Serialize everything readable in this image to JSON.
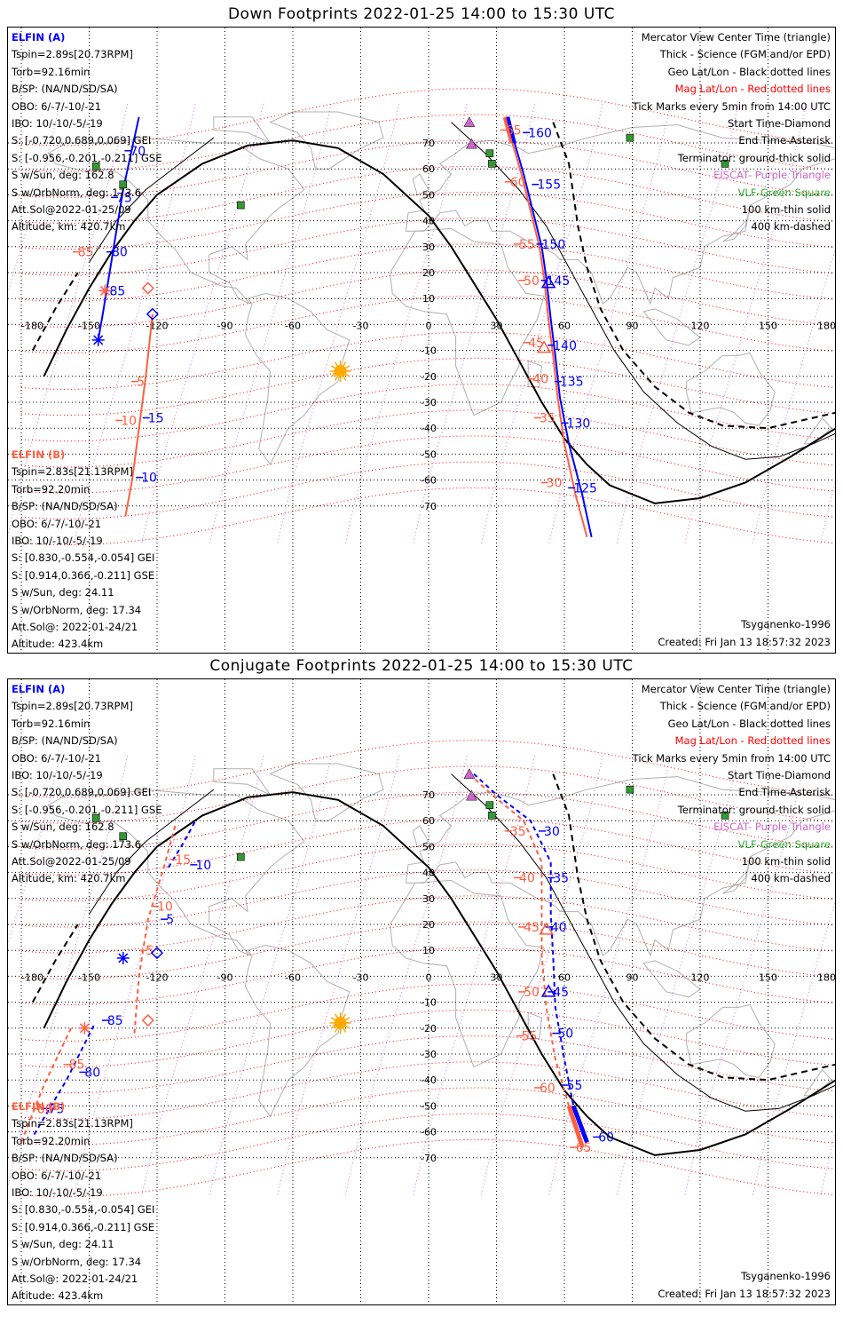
{
  "panels": [
    {
      "title": "Down Footprints 2022-01-25 14:00 to 15:30 UTC",
      "kind": "down",
      "elfin_a": {
        "header": "ELFIN (A)",
        "lines": [
          "Tspin=2.89s[20.73RPM]",
          "Torb=92.16min",
          "B/SP: (NA/ND/SD/SA)",
          "OBO: 6/-7/-10/-21",
          "IBO: 10/-10/-5/-19",
          "S: [-0.720,0.689,0.069] GEI",
          "S: [-0.956,-0.201,-0.211] GSE",
          "S w/Sun, deg: 162.8",
          "S w/OrbNorm, deg: 173.6",
          "Att.Sol@2022-01-25/09",
          "Altitude, km: 420.7km"
        ]
      },
      "elfin_b": {
        "header": "ELFIN (B)",
        "lines": [
          "Tspin=2.83s[21.13RPM]",
          "Torb=92.20min",
          "B/SP: (NA/ND/SD/SA)",
          "OBO: 6/-7/-10/-21",
          "IBO: 10/-10/-5/-19",
          "S: [0.830,-0.554,-0.054] GEI",
          "S: [0.914,0.366,-0.211] GSE",
          "S w/Sun, deg: 24.11",
          "S w/OrbNorm, deg: 17.34",
          "Att.Sol@: 2022-01-24/21",
          "Altitude: 423.4km"
        ]
      },
      "model": "Tsyganenko-1996",
      "created": "Created: Fri Jan 13 18:57:32 2023"
    },
    {
      "title": "Conjugate Footprints 2022-01-25 14:00 to 15:30 UTC",
      "kind": "conj",
      "elfin_a": {
        "header": "ELFIN (A)",
        "lines": [
          "Tspin=2.89s[20.73RPM]",
          "Torb=92.16min",
          "B/SP: (NA/ND/SD/SA)",
          "OBO: 6/-7/-10/-21",
          "IBO: 10/-10/-5/-19",
          "S: [-0.720,0.689,0.069] GEI",
          "S: [-0.956,-0.201,-0.211] GSE",
          "S w/Sun, deg: 162.8",
          "S w/OrbNorm, deg: 173.6",
          "Att.Sol@2022-01-25/09",
          "Altitude, km: 420.7km"
        ]
      },
      "elfin_b": {
        "header": "ELFIN (B)",
        "lines": [
          "Tspin=2.83s[21.13RPM]",
          "Torb=92.20min",
          "B/SP: (NA/ND/SD/SA)",
          "OBO: 6/-7/-10/-21",
          "IBO: 10/-10/-5/-19",
          "S: [0.830,-0.554,-0.054] GEI",
          "S: [0.914,0.366,-0.211] GSE",
          "S w/Sun, deg: 24.11",
          "S w/OrbNorm, deg: 17.34",
          "Att.Sol@: 2022-01-24/21",
          "Altitude: 423.4km"
        ]
      },
      "model": "Tsyganenko-1996",
      "created": "Created: Fri Jan 13 18:57:32 2023"
    }
  ],
  "legend": [
    {
      "text": "Mercator View Center Time (triangle)",
      "color": "#000000"
    },
    {
      "text": "Thick - Science (FGM and/or EPD)",
      "color": "#000000"
    },
    {
      "text": "Geo Lat/Lon - Black dotted lines",
      "color": "#000000"
    },
    {
      "text": "Mag Lat/Lon - Red dotted lines",
      "color": "#ff0000"
    },
    {
      "text": "Tick Marks every 5min from 14:00 UTC",
      "color": "#000000"
    },
    {
      "text": "Start Time-Diamond",
      "color": "#000000"
    },
    {
      "text": "End Time-Asterisk",
      "color": "#000000"
    },
    {
      "text": "Terminator: ground-thick solid",
      "color": "#000000"
    },
    {
      "text": "EISCAT- Purple Triangle",
      "color": "#cc66cc"
    },
    {
      "text": "VLF-Green Square",
      "color": "#33aa33"
    },
    {
      "text": "100 km-thin solid",
      "color": "#000000"
    },
    {
      "text": "400 km-dashed",
      "color": "#000000"
    }
  ],
  "lon_labels": [
    "-180",
    "-150",
    "-120",
    "-90",
    "-60",
    "-30",
    "0",
    "30",
    "60",
    "90",
    "120",
    "150",
    "180"
  ],
  "lat_labels": [
    "70",
    "60",
    "50",
    "40",
    "30",
    "20",
    "10",
    "0",
    "-10",
    "-20",
    "-30",
    "-40",
    "-50",
    "-60",
    "-70"
  ],
  "colors": {
    "elfin_a": "#0000ff",
    "elfin_b": "#ff6040",
    "mag_grid": "#ff0000",
    "geo_grid": "#000000",
    "eiscat": "#cc66cc",
    "vlf": "#339933",
    "sun": "#ffaa00"
  },
  "markers": {
    "eiscat": [
      {
        "lon": 18,
        "lat": 78
      },
      {
        "lon": 19,
        "lat": 69.6
      }
    ],
    "vlf": [
      {
        "lon": 27,
        "lat": 66
      },
      {
        "lon": 28,
        "lat": 62
      },
      {
        "lon": -147,
        "lat": 61
      },
      {
        "lon": -135,
        "lat": 54
      },
      {
        "lon": -83,
        "lat": 46
      },
      {
        "lon": 89,
        "lat": 72
      },
      {
        "lon": 131,
        "lat": 62
      }
    ],
    "sun": {
      "lon": -39,
      "lat": -18
    }
  },
  "track_labels": {
    "down": {
      "a": [
        {
          "t": "70",
          "lon": -132,
          "lat": 67
        },
        {
          "t": "75",
          "lon": -138,
          "lat": 49
        },
        {
          "t": "80",
          "lon": -140,
          "lat": 28
        },
        {
          "t": "85",
          "lon": -141,
          "lat": 13
        },
        {
          "t": "140",
          "lon": 55,
          "lat": -8
        },
        {
          "t": "135",
          "lon": 58,
          "lat": -22
        },
        {
          "t": "130",
          "lon": 61,
          "lat": -38
        },
        {
          "t": "125",
          "lon": 64,
          "lat": -63
        },
        {
          "t": "145",
          "lon": 52,
          "lat": 17
        },
        {
          "t": "150",
          "lon": 50,
          "lat": 31
        },
        {
          "t": "155",
          "lon": 48,
          "lat": 54
        },
        {
          "t": "160",
          "lon": 44,
          "lat": 74
        },
        {
          "t": "15",
          "lon": -124,
          "lat": -36
        },
        {
          "t": "10",
          "lon": -127,
          "lat": -59
        }
      ],
      "b": [
        {
          "t": "65",
          "lon": 34,
          "lat": 75
        },
        {
          "t": "60",
          "lon": 36,
          "lat": 55
        },
        {
          "t": "55",
          "lon": 40,
          "lat": 31
        },
        {
          "t": "50",
          "lon": 42,
          "lat": 17
        },
        {
          "t": "45",
          "lon": 44,
          "lat": -7
        },
        {
          "t": "40",
          "lon": 46,
          "lat": -21
        },
        {
          "t": "35",
          "lon": 49,
          "lat": -36
        },
        {
          "t": "30",
          "lon": 52,
          "lat": -61
        },
        {
          "t": "85",
          "lon": -155,
          "lat": 28
        },
        {
          "t": "10",
          "lon": -136,
          "lat": -37
        },
        {
          "t": "5",
          "lon": -129,
          "lat": -22
        }
      ]
    },
    "conj": {
      "a": [
        {
          "t": "30",
          "lon": 51,
          "lat": 56
        },
        {
          "t": "35",
          "lon": 55,
          "lat": 38
        },
        {
          "t": "40",
          "lon": 54,
          "lat": 19
        },
        {
          "t": "45",
          "lon": 55,
          "lat": -6
        },
        {
          "t": "50",
          "lon": 57,
          "lat": -22
        },
        {
          "t": "55",
          "lon": 61,
          "lat": -42
        },
        {
          "t": "60",
          "lon": 75,
          "lat": -62
        },
        {
          "t": "5",
          "lon": -116,
          "lat": 22
        },
        {
          "t": "10",
          "lon": -103,
          "lat": 43
        },
        {
          "t": "85",
          "lon": -142,
          "lat": -17
        },
        {
          "t": "80",
          "lon": -152,
          "lat": -37
        },
        {
          "t": "75",
          "lon": -168,
          "lat": -51
        }
      ],
      "b": [
        {
          "t": "35",
          "lon": 36,
          "lat": 56
        },
        {
          "t": "40",
          "lon": 40,
          "lat": 38
        },
        {
          "t": "45",
          "lon": 42,
          "lat": 19
        },
        {
          "t": "50",
          "lon": 42,
          "lat": -6
        },
        {
          "t": "55",
          "lon": 41,
          "lat": -23
        },
        {
          "t": "60",
          "lon": 49,
          "lat": -43
        },
        {
          "t": "65",
          "lon": 65,
          "lat": -66
        },
        {
          "t": "5",
          "lon": -125,
          "lat": 10
        },
        {
          "t": "10",
          "lon": -120,
          "lat": 27
        },
        {
          "t": "15",
          "lon": -112,
          "lat": 45
        },
        {
          "t": "85",
          "lon": -159,
          "lat": -34
        },
        {
          "t": "80",
          "lon": -173,
          "lat": -51
        }
      ]
    }
  }
}
